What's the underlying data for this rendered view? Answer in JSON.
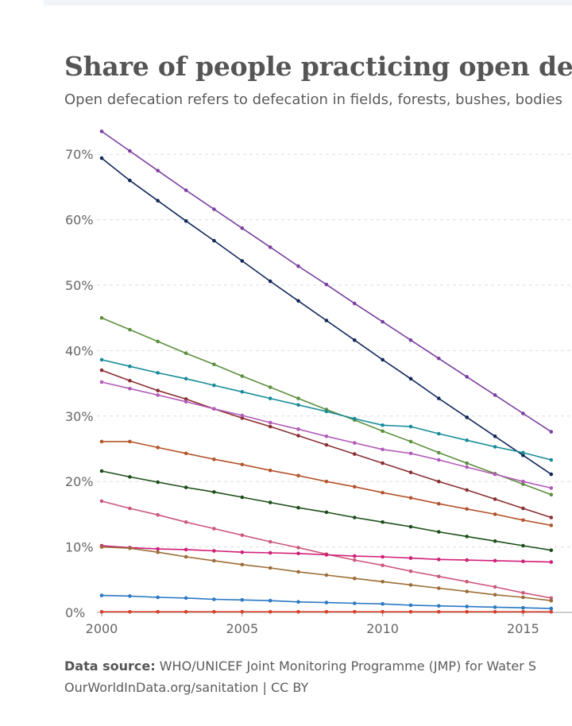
{
  "chart_data": {
    "type": "line",
    "title": "Share of people practicing open defe",
    "subtitle": "Open defecation refers to defecation in fields, forests, bushes, bodies",
    "xlabel": "",
    "ylabel": "",
    "xlim": [
      2000,
      2016.6
    ],
    "ylim": [
      0,
      75
    ],
    "x_ticks": [
      "2000",
      "2005",
      "2010",
      "2015"
    ],
    "y_ticks": [
      "0%",
      "10%",
      "20%",
      "30%",
      "40%",
      "50%",
      "60%",
      "70%"
    ],
    "grid": true,
    "x": [
      2000,
      2001,
      2002,
      2003,
      2004,
      2005,
      2006,
      2007,
      2008,
      2009,
      2010,
      2011,
      2012,
      2013,
      2014,
      2015,
      2016
    ],
    "series": [
      {
        "color": "#7b3fa0",
        "values": [
          73.5,
          70.5,
          67.5,
          64.5,
          61.6,
          58.7,
          55.8,
          52.9,
          50.1,
          47.2,
          44.4,
          41.6,
          38.8,
          36.0,
          33.2,
          30.4,
          27.6
        ]
      },
      {
        "color": "#12285a",
        "values": [
          69.4,
          66.0,
          62.9,
          59.8,
          56.8,
          53.7,
          50.6,
          47.6,
          44.6,
          41.6,
          38.6,
          35.7,
          32.7,
          29.8,
          26.9,
          24.0,
          21.1
        ]
      },
      {
        "color": "#5e8f3e",
        "values": [
          45.0,
          43.2,
          41.4,
          39.6,
          37.9,
          36.1,
          34.4,
          32.7,
          31.0,
          29.4,
          27.7,
          26.1,
          24.4,
          22.8,
          21.2,
          19.6,
          18.0
        ]
      },
      {
        "color": "#168c99",
        "values": [
          38.6,
          37.6,
          36.6,
          35.7,
          34.7,
          33.7,
          32.7,
          31.7,
          30.7,
          29.6,
          28.6,
          28.4,
          27.3,
          26.3,
          25.3,
          24.4,
          23.3
        ]
      },
      {
        "color": "#8b2e32",
        "values": [
          37.0,
          35.4,
          33.9,
          32.6,
          31.1,
          29.7,
          28.4,
          27.0,
          25.6,
          24.2,
          22.8,
          21.4,
          20.0,
          18.7,
          17.3,
          15.9,
          14.5
        ]
      },
      {
        "color": "#b25bb7",
        "values": [
          35.2,
          34.2,
          33.2,
          32.2,
          31.1,
          30.1,
          29.0,
          28.0,
          26.9,
          25.9,
          24.9,
          24.3,
          23.3,
          22.2,
          21.1,
          20.0,
          19.0
        ]
      },
      {
        "color": "#b4532a",
        "values": [
          26.1,
          26.1,
          25.2,
          24.3,
          23.4,
          22.6,
          21.7,
          20.9,
          20.0,
          19.2,
          18.3,
          17.5,
          16.6,
          15.8,
          15.0,
          14.1,
          13.3
        ]
      },
      {
        "color": "#1c4f1a",
        "values": [
          21.6,
          20.7,
          19.9,
          19.1,
          18.4,
          17.6,
          16.8,
          16.0,
          15.3,
          14.5,
          13.8,
          13.1,
          12.3,
          11.6,
          10.9,
          10.2,
          9.5
        ]
      },
      {
        "color": "#cd587a",
        "values": [
          17.0,
          15.9,
          14.9,
          13.8,
          12.8,
          11.8,
          10.8,
          9.9,
          8.9,
          8.0,
          7.2,
          6.3,
          5.5,
          4.7,
          3.9,
          3.0,
          2.2
        ]
      },
      {
        "color": "#d11d77",
        "values": [
          10.2,
          9.9,
          9.7,
          9.6,
          9.4,
          9.2,
          9.1,
          9.0,
          8.8,
          8.6,
          8.5,
          8.3,
          8.1,
          8.0,
          7.9,
          7.8,
          7.7
        ]
      },
      {
        "color": "#9b6d36",
        "values": [
          10.0,
          9.8,
          9.2,
          8.5,
          7.9,
          7.3,
          6.8,
          6.2,
          5.7,
          5.2,
          4.7,
          4.2,
          3.7,
          3.2,
          2.7,
          2.3,
          1.8
        ]
      },
      {
        "color": "#2a78c2",
        "values": [
          2.6,
          2.5,
          2.3,
          2.2,
          2.0,
          1.9,
          1.8,
          1.6,
          1.5,
          1.4,
          1.3,
          1.1,
          1.0,
          0.9,
          0.8,
          0.7,
          0.6
        ]
      },
      {
        "color": "#d6412c",
        "values": [
          0.1,
          0.1,
          0.1,
          0.1,
          0.1,
          0.1,
          0.1,
          0.1,
          0.1,
          0.1,
          0.1,
          0.1,
          0.1,
          0.1,
          0.1,
          0.1,
          0.1
        ]
      }
    ]
  },
  "footer": {
    "source_label": "Data source:",
    "source_text": "WHO/UNICEF Joint Monitoring Programme (JMP) for Water S",
    "url_line": "OurWorldInData.org/sanitation | CC BY"
  }
}
